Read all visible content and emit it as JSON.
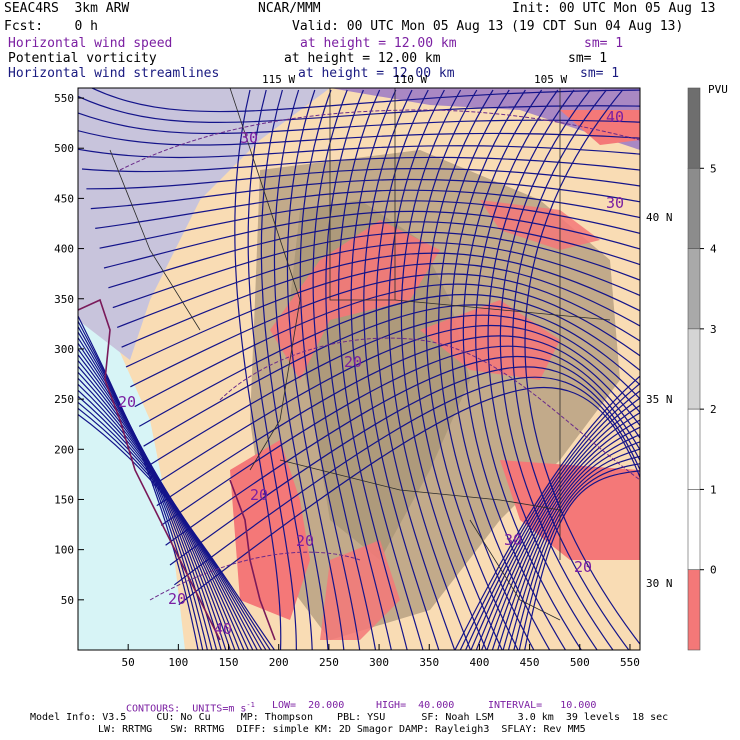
{
  "header": {
    "model": "SEAC4RS  3km ARW",
    "center": "NCAR/MMM",
    "init": "Init: 00 UTC Mon 05 Aug 13",
    "fcst": "Fcst:    0 h",
    "valid": "Valid: 00 UTC Mon 05 Aug 13 (19 CDT Sun 04 Aug 13)"
  },
  "fields": [
    {
      "name": "Horizontal wind speed",
      "level": "at height = 12.00 km",
      "sm": "sm= 1",
      "color": "#7b1fa2"
    },
    {
      "name": "Potential vorticity",
      "level": "at height = 12.00 km",
      "sm": "sm= 1",
      "color": "#000000"
    },
    {
      "name": "Horizontal wind streamlines",
      "level": "at height = 12.00 km",
      "sm": "sm= 1",
      "color": "#1a1a80"
    }
  ],
  "axes": {
    "x_ticks": [
      "50",
      "100",
      "150",
      "200",
      "250",
      "300",
      "350",
      "400",
      "450",
      "500",
      "550"
    ],
    "y_ticks": [
      "50",
      "100",
      "150",
      "200",
      "250",
      "300",
      "350",
      "400",
      "450",
      "500",
      "550"
    ]
  },
  "longitude_labels": [
    "115 W",
    "110 W",
    "105 W"
  ],
  "latitude_labels": [
    "40 N",
    "35 N",
    "30 N"
  ],
  "contour_labels": [
    "30",
    "40",
    "30",
    "20",
    "20",
    "20",
    "20",
    "20",
    "20",
    "40",
    "30"
  ],
  "colorbar": {
    "unit": "PVU",
    "labels": [
      "5",
      "4",
      "3",
      "2",
      "1",
      "0"
    ],
    "colors": [
      "#6e6e6e",
      "#8c8c8c",
      "#a9a9a9",
      "#d4d4d4",
      "#ffffff",
      "#ffffff",
      "#f47878"
    ]
  },
  "footer": {
    "contours": "CONTOURS:  UNITS=m s",
    "contours_sup": "-1",
    "low": "LOW=  20.000",
    "high": "HIGH=  40.000",
    "interval": "INTERVAL=   10.000",
    "info1": "Model Info: V3.5     CU: No Cu     MP: Thompson    PBL: YSU      SF: Noah LSM    3.0 km  39 levels  18 sec",
    "info2": "LW: RRTMG   SW: RRTMG  DIFF: simple KM: 2D Smagor DAMP: Rayleigh3  SFLAY: Rev MM5"
  },
  "colors": {
    "streamline": "#14148a",
    "contour": "#6a2a8a",
    "terrain": "#c2aa8a",
    "pv_high": "#f47878",
    "low_water": "#d7f4f6",
    "shade": "#c8c4dc",
    "peach": "#f9dcb4"
  }
}
